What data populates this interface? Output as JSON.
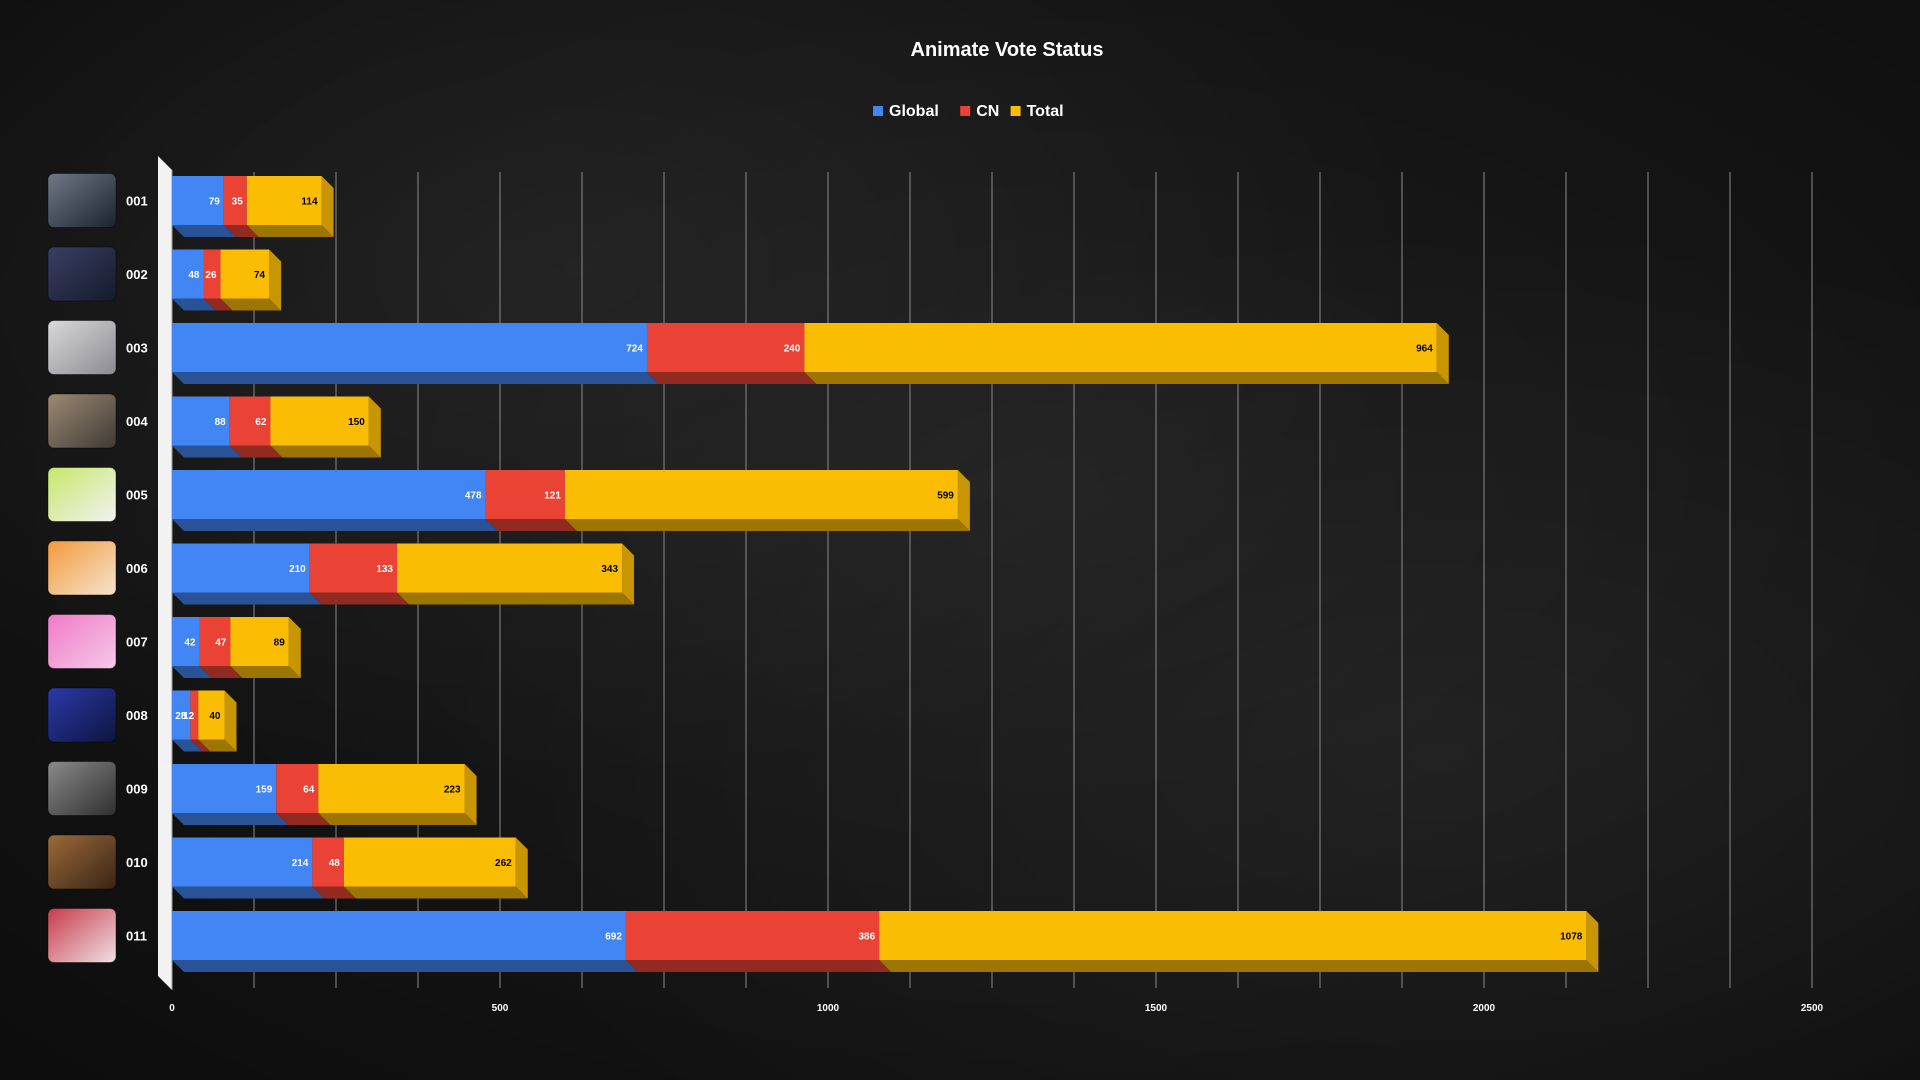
{
  "chart_data": {
    "type": "bar",
    "orientation": "horizontal",
    "stacked": true,
    "title": "Animate Vote Status",
    "categories": [
      "001",
      "002",
      "003",
      "004",
      "005",
      "006",
      "007",
      "008",
      "009",
      "010",
      "011"
    ],
    "series": [
      {
        "name": "Global",
        "color": "#4285f4",
        "values": [
          79,
          48,
          724,
          88,
          478,
          210,
          42,
          28,
          159,
          214,
          692
        ]
      },
      {
        "name": "CN",
        "color": "#ea4335",
        "values": [
          35,
          26,
          240,
          62,
          121,
          133,
          47,
          12,
          64,
          48,
          386
        ]
      },
      {
        "name": "Total",
        "color": "#fbbc04",
        "values": [
          114,
          74,
          964,
          150,
          599,
          343,
          89,
          40,
          223,
          262,
          1078
        ]
      }
    ],
    "xlim": [
      0,
      2500
    ],
    "xticks": [
      "0",
      "500",
      "1000",
      "1500",
      "2000",
      "2500"
    ],
    "grid": true,
    "legend_position": "top-center"
  },
  "thumbnails": [
    {
      "category": "001",
      "colors": [
        "#6f7a86",
        "#1b2230"
      ]
    },
    {
      "category": "002",
      "colors": [
        "#3a3f63",
        "#151a2b"
      ]
    },
    {
      "category": "003",
      "colors": [
        "#d9d9dc",
        "#8a8a91"
      ]
    },
    {
      "category": "004",
      "colors": [
        "#9c8a73",
        "#3f3a35"
      ]
    },
    {
      "category": "005",
      "colors": [
        "#c6e86a",
        "#f2f2f2"
      ]
    },
    {
      "category": "006",
      "colors": [
        "#f39a3a",
        "#f6e3cf"
      ]
    },
    {
      "category": "007",
      "colors": [
        "#f07ac8",
        "#f6c9e8"
      ]
    },
    {
      "category": "008",
      "colors": [
        "#2a3aa8",
        "#0e1440"
      ]
    },
    {
      "category": "009",
      "colors": [
        "#8a8a8a",
        "#2f2f2f"
      ]
    },
    {
      "category": "010",
      "colors": [
        "#9a6a3a",
        "#3a2415"
      ]
    },
    {
      "category": "011",
      "colors": [
        "#c73b4a",
        "#f0e0e4"
      ]
    }
  ]
}
